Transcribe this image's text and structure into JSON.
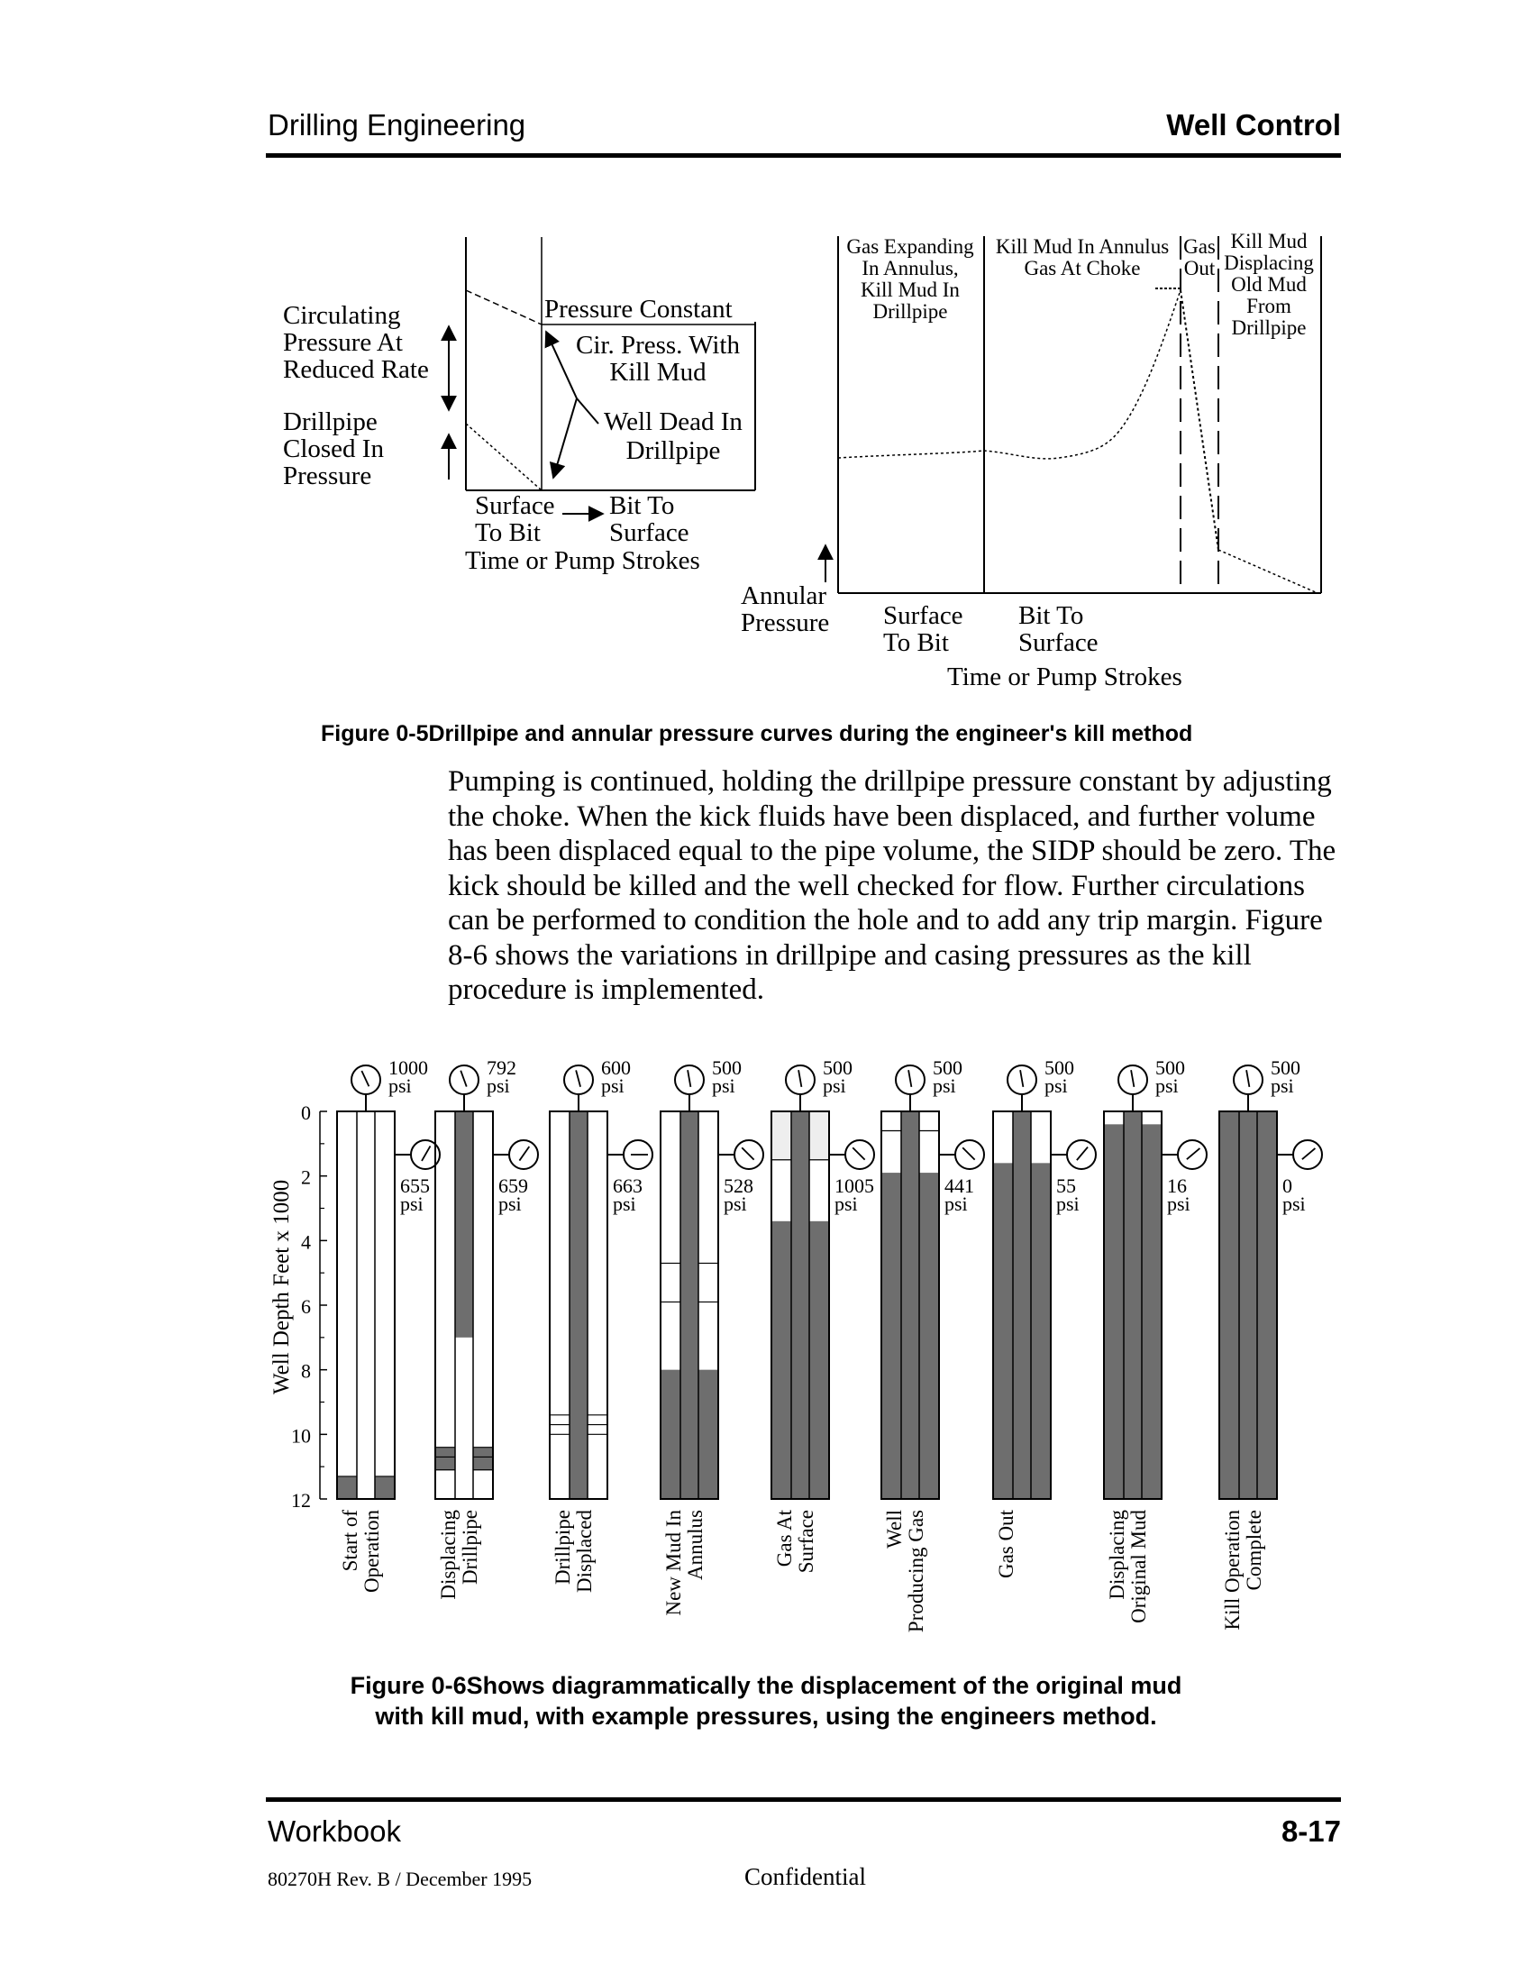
{
  "header": {
    "left": "Drilling Engineering",
    "right": "Well Control"
  },
  "figure5": {
    "drillpipe": {
      "circ_label": [
        "Circulating",
        "Pressure At",
        "Reduced Rate"
      ],
      "closed_label": [
        "Drillpipe",
        "Closed In",
        "Pressure"
      ],
      "pressure_constant": "Pressure Constant",
      "cir_press": [
        "Cir. Press. With",
        "Kill Mud"
      ],
      "well_dead": [
        "Well Dead In",
        "Drillpipe"
      ],
      "surface_to_bit": [
        "Surface",
        "To Bit"
      ],
      "bit_to_surface": [
        "Bit To",
        "Surface"
      ],
      "xlabel": "Time or Pump Strokes"
    },
    "annular": {
      "phases": [
        [
          "Gas Expanding",
          "In Annulus,",
          "Kill Mud In",
          "Drillpipe"
        ],
        [
          "Kill Mud In Annulus",
          "Gas At Choke"
        ],
        [
          "Gas",
          "Out"
        ],
        [
          "Kill Mud",
          "Displacing",
          "Old Mud",
          "From",
          "Drillpipe"
        ]
      ],
      "ylabel": [
        "Annular",
        "Pressure"
      ],
      "surface_to_bit": [
        "Surface",
        "To Bit"
      ],
      "bit_to_surface": [
        "Bit To",
        "Surface"
      ],
      "xlabel": "Time or Pump Strokes"
    },
    "caption": "Figure 0-5Drillpipe and annular pressure curves during the engineer's kill method"
  },
  "body_text": "Pumping is continued, holding the drillpipe pressure constant by adjusting the choke. When the kick fluids have been displaced, and further volume has been displaced equal to the pipe volume, the SIDP should be zero. The kick should be killed and the well checked for flow. Further circulations can be performed to condition the hole and to add any trip margin. Figure 8-6 shows the variations in drillpipe and casing pressures as the kill procedure is implemented.",
  "figure6": {
    "ylabel": "Well Depth Feet x 1000",
    "depth_ticks": [
      "0",
      "2",
      "4",
      "6",
      "8",
      "10",
      "12"
    ],
    "unit": "psi",
    "stages": [
      {
        "label": [
          "Start of",
          "Operation"
        ],
        "drillpipe_psi": "1000",
        "casing_psi": "655"
      },
      {
        "label": [
          "Displacing",
          "Drillpipe"
        ],
        "drillpipe_psi": "792",
        "casing_psi": "659"
      },
      {
        "label": [
          "Drillpipe",
          "Displaced"
        ],
        "drillpipe_psi": "600",
        "casing_psi": "663"
      },
      {
        "label": [
          "New Mud In",
          "Annulus"
        ],
        "drillpipe_psi": "500",
        "casing_psi": "528"
      },
      {
        "label": [
          "Gas At",
          "Surface"
        ],
        "drillpipe_psi": "500",
        "casing_psi": "1005"
      },
      {
        "label": [
          "Well",
          "Producing Gas"
        ],
        "drillpipe_psi": "500",
        "casing_psi": "441"
      },
      {
        "label": [
          "Gas Out"
        ],
        "drillpipe_psi": "500",
        "casing_psi": "55"
      },
      {
        "label": [
          "Displacing",
          "Original Mud"
        ],
        "drillpipe_psi": "500",
        "casing_psi": "16"
      },
      {
        "label": [
          "Kill Operation",
          "Complete"
        ],
        "drillpipe_psi": "500",
        "casing_psi": "0"
      }
    ],
    "caption": [
      "Figure 0-6Shows diagrammatically the displacement of the original mud",
      "with kill mud, with example pressures, using the engineers method."
    ]
  },
  "footer": {
    "left": "Workbook",
    "right": "8-17",
    "revision": "80270H Rev. B / December 1995",
    "center": "Confidential"
  }
}
